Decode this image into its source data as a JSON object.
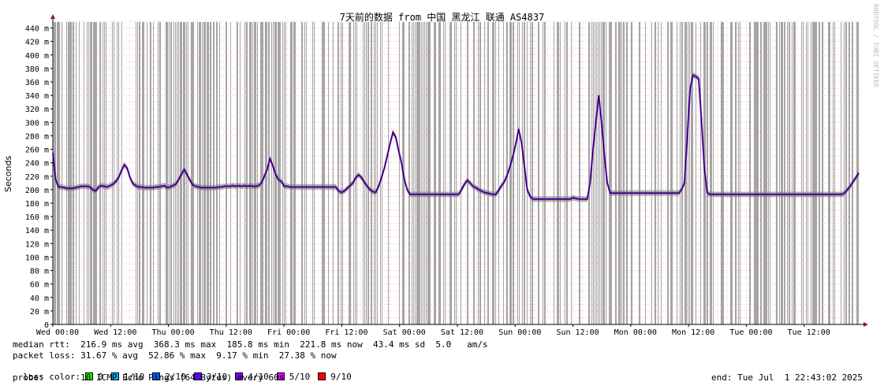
{
  "chart_data": {
    "type": "line",
    "title": "7天前的数据 from 中国 黑龙江 联通 AS4837",
    "ylabel": "Seconds",
    "ylim": [
      0,
      450
    ],
    "yticks": [
      "0",
      "20 m",
      "40 m",
      "60 m",
      "80 m",
      "100 m",
      "120 m",
      "140 m",
      "160 m",
      "180 m",
      "200 m",
      "220 m",
      "240 m",
      "260 m",
      "280 m",
      "300 m",
      "320 m",
      "340 m",
      "360 m",
      "380 m",
      "400 m",
      "420 m",
      "440 m"
    ],
    "xticks": [
      "Wed 00:00",
      "Wed 12:00",
      "Thu 00:00",
      "Thu 12:00",
      "Fri 00:00",
      "Fri 12:00",
      "Sat 00:00",
      "Sat 12:00",
      "Sun 00:00",
      "Sun 12:00",
      "Mon 00:00",
      "Mon 12:00",
      "Tue 00:00",
      "Tue 12:00"
    ],
    "grid": true,
    "series": [
      {
        "values_ms": [
          255,
          215,
          204,
          204,
          203,
          202,
          202,
          202,
          203,
          204,
          205,
          205,
          205,
          204,
          200,
          198,
          204,
          206,
          205,
          204,
          206,
          208,
          212,
          218,
          228,
          237,
          232,
          218,
          209,
          206,
          204,
          204,
          203,
          203,
          203,
          203,
          204,
          204,
          205,
          206,
          203,
          204,
          206,
          208,
          215,
          223,
          230,
          222,
          214,
          207,
          205,
          204,
          203,
          203,
          203,
          203,
          203,
          203,
          204,
          204,
          205,
          205,
          205,
          206,
          205,
          206,
          205,
          206,
          205,
          206,
          205,
          205,
          206,
          210,
          220,
          230,
          246,
          235,
          222,
          215,
          212,
          205,
          205,
          204,
          204,
          204,
          204,
          204,
          204,
          204,
          204,
          204,
          204,
          204,
          204,
          204,
          204,
          204,
          204,
          204,
          198,
          196,
          198,
          202,
          206,
          210,
          218,
          222,
          218,
          211,
          205,
          200,
          197,
          196,
          205,
          218,
          232,
          250,
          268,
          285,
          278,
          258,
          240,
          215,
          200,
          193,
          193,
          193,
          193,
          193,
          193,
          193,
          193,
          193,
          193,
          193,
          193,
          193,
          193,
          193,
          193,
          193,
          193,
          200,
          208,
          214,
          210,
          205,
          203,
          200,
          198,
          196,
          195,
          194,
          193,
          193,
          199,
          206,
          212,
          222,
          235,
          250,
          268,
          290,
          270,
          235,
          200,
          190,
          186,
          186,
          186,
          186,
          186,
          186,
          186,
          186,
          186,
          186,
          186,
          186,
          186,
          186,
          188,
          187,
          186,
          186,
          186,
          186,
          210,
          260,
          300,
          340,
          300,
          250,
          210,
          195,
          195,
          195,
          195,
          195,
          195,
          195,
          195,
          195,
          195,
          195,
          195,
          195,
          195,
          195,
          195,
          195,
          195,
          195,
          195,
          195,
          195,
          195,
          195,
          195,
          200,
          210,
          280,
          350,
          370,
          368,
          365,
          300,
          230,
          195,
          193,
          193,
          193,
          193,
          193,
          193,
          193,
          193,
          193,
          193,
          193,
          193,
          193,
          193,
          193,
          193,
          193,
          193,
          193,
          193,
          193,
          193,
          193,
          193,
          193,
          193,
          193,
          193,
          193,
          193,
          193,
          193,
          193,
          193,
          193,
          193,
          193,
          193,
          193,
          193,
          193,
          193,
          193,
          193,
          193,
          193,
          193,
          195,
          200,
          205,
          212,
          218,
          225
        ]
      }
    ],
    "colors": {
      "loss_shade": "#9a9a9a",
      "line": "#000000",
      "grid": "#e8a0a0",
      "axis": "#000000",
      "arrow": "#8b1a1a"
    }
  },
  "legend": {
    "median_rtt": "median rtt:  216.9 ms avg  368.3 ms max  185.8 ms min  221.8 ms now  43.4 ms sd  5.0   am/s",
    "packet_loss": "packet loss: 31.67 % avg  52.86 % max  9.17 % min  27.38 % now",
    "loss_color_label": "loss color:",
    "loss_colors": [
      {
        "label": "0",
        "color": "#26ff00"
      },
      {
        "label": "1/10",
        "color": "#00b8ff"
      },
      {
        "label": "2/10",
        "color": "#0059ff"
      },
      {
        "label": "3/10",
        "color": "#5e00ff"
      },
      {
        "label": "4/10",
        "color": "#7e00ff"
      },
      {
        "label": "5/10",
        "color": "#dd00ff"
      },
      {
        "label": "9/10",
        "color": "#ff0000"
      }
    ],
    "probe": "probe:       10 ICMP Echo Pings (64 Bytes) every 60s",
    "end": "end: Tue Jul  1 22:43:02 2025"
  },
  "watermark": "RRDTOOL / TOBI OETIKER"
}
